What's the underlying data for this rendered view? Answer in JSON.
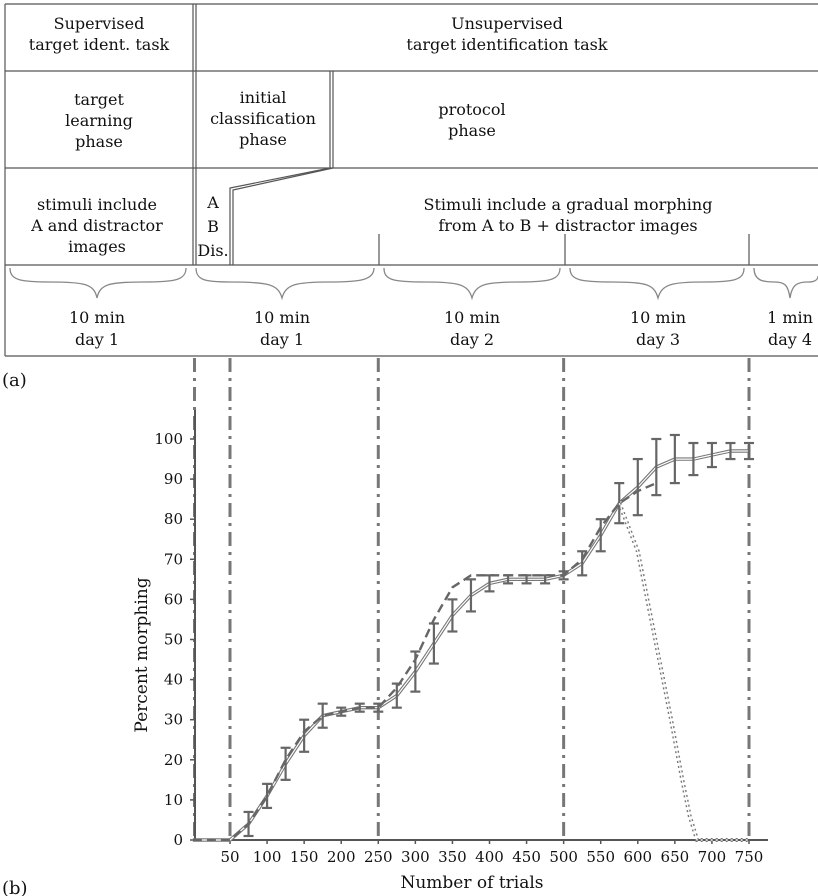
{
  "panel_a": {
    "label": "(a)",
    "row1": {
      "supervised": [
        "Supervised",
        "target ident. task"
      ],
      "unsupervised": [
        "Unsupervised",
        "target identification task"
      ]
    },
    "row2": {
      "learning": [
        "target",
        "learning",
        "phase"
      ],
      "initial": [
        "initial",
        "classification",
        "phase"
      ],
      "protocol": [
        "protocol",
        "phase"
      ]
    },
    "row3": {
      "stimuli_a": [
        "stimuli include",
        "A and distractor",
        "images"
      ],
      "abd": [
        "A",
        "B",
        "Dis."
      ],
      "morph": [
        "Stimuli include a gradual morphing",
        "from A to B + distractor images"
      ]
    },
    "row4": [
      [
        "10 min",
        "day 1"
      ],
      [
        "10 min",
        "day 1"
      ],
      [
        "10 min",
        "day 2"
      ],
      [
        "10 min",
        "day 3"
      ],
      [
        "1 min",
        "day 4"
      ]
    ]
  },
  "panel_b": {
    "label": "(b)"
  },
  "chart_data": {
    "type": "line",
    "xlabel": "Number of trials",
    "ylabel": "Percent morphing",
    "xlim": [
      0,
      760
    ],
    "ylim": [
      0,
      100
    ],
    "xticks": [
      50,
      100,
      150,
      200,
      250,
      300,
      350,
      400,
      450,
      500,
      550,
      600,
      650,
      700,
      750
    ],
    "yticks": [
      0,
      10,
      20,
      30,
      40,
      50,
      60,
      70,
      80,
      90,
      100
    ],
    "phase_boundaries": [
      50,
      250,
      500,
      750
    ],
    "series": [
      {
        "style": "solid-with-errorbars",
        "x": [
          0,
          40,
          50,
          75,
          100,
          125,
          150,
          175,
          200,
          225,
          250,
          275,
          300,
          325,
          350,
          375,
          400,
          425,
          450,
          475,
          500,
          525,
          550,
          575,
          600,
          625,
          650,
          675,
          700,
          725,
          750
        ],
        "y": [
          0,
          0,
          0,
          4,
          11,
          19,
          26,
          31,
          32,
          33,
          33,
          36,
          42,
          49,
          56,
          61,
          64,
          65,
          65,
          65,
          66,
          69,
          76,
          84,
          88,
          93,
          95,
          95,
          96,
          97,
          97
        ],
        "err": [
          0,
          0,
          0,
          3,
          3,
          4,
          4,
          3,
          1,
          1,
          1,
          3,
          5,
          5,
          4,
          4,
          2,
          1,
          1,
          1,
          1,
          3,
          4,
          5,
          7,
          7,
          6,
          4,
          3,
          2,
          2
        ]
      },
      {
        "style": "dashed",
        "x": [
          0,
          50,
          75,
          100,
          125,
          150,
          175,
          200,
          225,
          250,
          275,
          300,
          325,
          350,
          375,
          400,
          425,
          450,
          475,
          500,
          525,
          550,
          575,
          600,
          625
        ],
        "y": [
          0,
          0,
          4,
          11,
          20,
          27,
          31,
          32,
          33,
          33,
          38,
          45,
          55,
          63,
          66,
          66,
          66,
          66,
          66,
          66,
          70,
          78,
          84,
          87,
          89
        ]
      },
      {
        "style": "dotted-double",
        "x": [
          575,
          600,
          615,
          630,
          645,
          660,
          670,
          680,
          700,
          720,
          750
        ],
        "y": [
          84,
          72,
          58,
          44,
          30,
          15,
          6,
          0,
          0,
          0,
          0
        ]
      }
    ]
  }
}
